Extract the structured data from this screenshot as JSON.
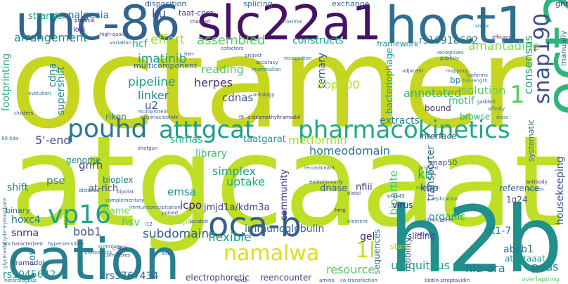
{
  "word_cloud": {
    "words": [
      {
        "text": "octamer",
        "color": "#c5d520"
      },
      {
        "text": "atgcaaat",
        "color": "#bddf26"
      },
      {
        "text": "unc-86",
        "color": "#33638d"
      },
      {
        "text": "slc22a1",
        "color": "#471164"
      },
      {
        "text": "hoct1",
        "color": "#2e6f8e"
      },
      {
        "text": "oct2",
        "color": "#2fb47c"
      },
      {
        "text": "h2b",
        "color": "#21908c"
      },
      {
        "text": "cation",
        "color": "#277f8e"
      },
      {
        "text": "oca-b",
        "color": "#355f8d"
      },
      {
        "text": "pharmacokinetics",
        "color": "#22a785"
      },
      {
        "text": "atttgcat",
        "color": "#1e9b8a"
      },
      {
        "text": "pouhd",
        "color": "#2a788e"
      },
      {
        "text": "snap190",
        "color": "#3c4f8a"
      },
      {
        "text": "namalwa",
        "color": "#d8e219"
      },
      {
        "text": "vp16",
        "color": "#1fa088"
      },
      {
        "text": "1l",
        "color": "#c2df23"
      },
      {
        "text": "1",
        "color": "#5ac864"
      },
      {
        "text": "amantadine",
        "color": "#84d44b"
      },
      {
        "text": "consensus",
        "color": "#21a685"
      },
      {
        "text": "analgesia",
        "color": "#2d718e"
      },
      {
        "text": "ku",
        "color": "#3e4989"
      },
      {
        "text": "taat-core",
        "color": "#443b84"
      },
      {
        "text": "disposition",
        "color": "#33638d"
      },
      {
        "text": "splicing",
        "color": "#2c728e"
      },
      {
        "text": "exchange",
        "color": "#31688e"
      },
      {
        "text": "strands",
        "color": "#1f9e89"
      },
      {
        "text": "gnrhr",
        "color": "#414487"
      },
      {
        "text": "arrangement",
        "color": "#25858e"
      },
      {
        "text": "effort",
        "color": "#a0da39"
      },
      {
        "text": "assembled",
        "color": "#5cc863"
      },
      {
        "text": "constructs",
        "color": "#1fa187"
      },
      {
        "text": "rs10918682",
        "color": "#2a768e"
      },
      {
        "text": "framework",
        "color": "#1f968b"
      },
      {
        "text": "hcf",
        "color": "#20a486"
      },
      {
        "text": "footprinting",
        "color": "#2ab07f"
      },
      {
        "text": "cdna",
        "color": "#2a788e"
      },
      {
        "text": "imatinib",
        "color": "#1fa188"
      },
      {
        "text": "pipeline",
        "color": "#1f9f88"
      },
      {
        "text": "reading",
        "color": "#52c569"
      },
      {
        "text": "herpes",
        "color": "#472f7d"
      },
      {
        "text": "cdnas",
        "color": "#3b528b"
      },
      {
        "text": "linker",
        "color": "#26828e"
      },
      {
        "text": "u2",
        "color": "#3a548c"
      },
      {
        "text": "ternary",
        "color": "#39568c"
      },
      {
        "text": "obp100",
        "color": "#b5de2b"
      },
      {
        "text": "annotated",
        "color": "#2fb47c"
      },
      {
        "text": "solution",
        "color": "#63cb5f"
      },
      {
        "text": "motif",
        "color": "#3fbc73"
      },
      {
        "text": "supershift",
        "color": "#24868e"
      },
      {
        "text": "bacteriophage",
        "color": "#1fa287"
      },
      {
        "text": "multicomponent",
        "color": "#31688e"
      },
      {
        "text": "5'-end",
        "color": "#3d4e8a"
      },
      {
        "text": "snrnas",
        "color": "#2ab07f"
      },
      {
        "text": "extracts",
        "color": "#287c8e"
      },
      {
        "text": "homeodomain",
        "color": "#2d718e"
      },
      {
        "text": "metformin",
        "color": "#a8db34"
      },
      {
        "text": "library",
        "color": "#40bd72"
      },
      {
        "text": "taatgarat",
        "color": "#1f9a8a"
      },
      {
        "text": "community",
        "color": "#46327e"
      },
      {
        "text": "gnrh",
        "color": "#3e4a89"
      },
      {
        "text": "pse",
        "color": "#2a788e"
      },
      {
        "text": "shift",
        "color": "#2d708e"
      },
      {
        "text": "genome",
        "color": "#25858e"
      },
      {
        "text": "bioplex",
        "color": "#2a788e"
      },
      {
        "text": "at-rich",
        "color": "#3c4f8a"
      },
      {
        "text": "simplex",
        "color": "#1f9e89"
      },
      {
        "text": "uptake",
        "color": "#25ab82"
      },
      {
        "text": "emsa",
        "color": "#1f948c"
      },
      {
        "text": "icpo",
        "color": "#482677"
      },
      {
        "text": "jmjd1a/kdm3a",
        "color": "#414487"
      },
      {
        "text": "bipartite",
        "color": "#4ac16d"
      },
      {
        "text": "transporter",
        "color": "#2e6e8e"
      },
      {
        "text": "kbp",
        "color": "#3b528b"
      },
      {
        "text": "nfiii",
        "color": "#472d7b"
      },
      {
        "text": "dnase",
        "color": "#31688e"
      },
      {
        "text": "kb",
        "color": "#27ad81"
      },
      {
        "text": "housekeeping",
        "color": "#3a548c"
      },
      {
        "text": "hoxc4",
        "color": "#2c718e"
      },
      {
        "text": "snrna",
        "color": "#482475"
      },
      {
        "text": "bob1",
        "color": "#3c508b"
      },
      {
        "text": "hsv",
        "color": "#5ec962"
      },
      {
        "text": "subdomains",
        "color": "#355f8d"
      },
      {
        "text": "immunoglobulin",
        "color": "#32648e"
      },
      {
        "text": "flexible",
        "color": "#1f998a"
      },
      {
        "text": "gel",
        "color": "#472a7a"
      },
      {
        "text": "organic",
        "color": "#1fa188"
      },
      {
        "text": "gt1-7",
        "color": "#2a788e"
      },
      {
        "text": "abcb1",
        "color": "#2c728e"
      },
      {
        "text": "1q24",
        "color": "#3e4989"
      },
      {
        "text": "snap50",
        "color": "#3d4d8a"
      },
      {
        "text": "snap45",
        "color": "#a2da37"
      },
      {
        "text": "resource",
        "color": "#58c765"
      },
      {
        "text": "ubiquitous",
        "color": "#1fa088"
      },
      {
        "text": "hla-dra",
        "color": "#2a778e"
      },
      {
        "text": "sliding",
        "color": "#414487"
      },
      {
        "text": "pous",
        "color": "#2a788e"
      },
      {
        "text": "rs1045642",
        "color": "#1f958b"
      },
      {
        "text": "rs3767434",
        "color": "#2f6b8e"
      },
      {
        "text": "electrophoretic",
        "color": "#433e85"
      },
      {
        "text": "reencounter",
        "color": "#424086"
      },
      {
        "text": "sequences",
        "color": "#2b748e"
      },
      {
        "text": "atgctaaat",
        "color": "#20928c"
      },
      {
        "text": "mobility",
        "color": "#3a538b"
      },
      {
        "text": "frame",
        "color": "#7ad151"
      },
      {
        "text": "cos",
        "color": "#2c718e"
      },
      {
        "text": "binary",
        "color": "#2b758e"
      },
      {
        "text": "tramadol",
        "color": "#3b518b"
      },
      {
        "text": "reference",
        "color": "#2f6c8e"
      },
      {
        "text": "browse",
        "color": "#29af7f"
      },
      {
        "text": "bound",
        "color": "#46337f"
      },
      {
        "text": "interface",
        "color": "#34618d"
      },
      {
        "text": "virus",
        "color": "#482979"
      },
      {
        "text": "riken",
        "color": "#2b748e"
      },
      {
        "text": "bp",
        "color": "#23898e"
      },
      {
        "text": "systematic",
        "color": "#2e6e8e"
      },
      {
        "text": "manually",
        "color": "#2b758e"
      },
      {
        "text": "start",
        "color": "#a5db36"
      },
      {
        "text": "overlapping",
        "color": "#5ec962"
      },
      {
        "text": "loci",
        "color": "#472f7d"
      },
      {
        "text": "physical",
        "color": "#482374"
      },
      {
        "text": "high-quality",
        "color": "#414487"
      },
      {
        "text": "variation",
        "color": "#355e8d"
      },
      {
        "text": "herr",
        "color": "#3e4989"
      },
      {
        "text": "cofactors",
        "color": "#3b528b"
      },
      {
        "text": "project",
        "color": "#34618d"
      },
      {
        "text": "accuracy",
        "color": "#3a548c"
      },
      {
        "text": "mammalian",
        "color": "#2d708e"
      },
      {
        "text": "charged",
        "color": "#472c7a"
      },
      {
        "text": "proximal",
        "color": "#2c738e"
      },
      {
        "text": "recognition",
        "color": "#2e6f8e"
      },
      {
        "text": "efficacy",
        "color": "#46337f"
      },
      {
        "text": "recognizes",
        "color": "#31688e"
      },
      {
        "text": "snapc",
        "color": "#2c728e"
      },
      {
        "text": "publicly",
        "color": "#38598c"
      },
      {
        "text": "adjacent",
        "color": "#3e4a89"
      },
      {
        "text": "mapping",
        "color": "#2d718e"
      },
      {
        "text": "isoforms",
        "color": "#3a538b"
      },
      {
        "text": "full-length",
        "color": "#23898e"
      },
      {
        "text": "gadd45",
        "color": "#365c8d"
      },
      {
        "text": "affinity",
        "color": "#2c728e"
      },
      {
        "text": "dnas",
        "color": "#2a768e"
      },
      {
        "text": "clusters",
        "color": "#3e4989"
      },
      {
        "text": "evolution",
        "color": "#2c728e"
      },
      {
        "text": "ontology",
        "color": "#3f4889"
      },
      {
        "text": "multiprotein",
        "color": "#2d708e"
      },
      {
        "text": "oligonucleotide",
        "color": "#3b528b"
      },
      {
        "text": "f9",
        "color": "#443983"
      },
      {
        "text": "o-desmethyltramadol",
        "color": "#472e7c"
      },
      {
        "text": "80-kda",
        "color": "#2f6b8e"
      },
      {
        "text": "glyceraldehyde-3-phosphate",
        "color": "#2e6e8e"
      },
      {
        "text": "shotgun",
        "color": "#3a538b"
      },
      {
        "text": "recombinant",
        "color": "#3b528b"
      },
      {
        "text": "evolutionarily",
        "color": "#3f4788"
      },
      {
        "text": "distance",
        "color": "#34608d"
      },
      {
        "text": "bipolar",
        "color": "#3e4a89"
      },
      {
        "text": "complementary",
        "color": "#31678e"
      },
      {
        "text": "immunoprecipitation",
        "color": "#31678e"
      },
      {
        "text": "distal",
        "color": "#3b518b"
      },
      {
        "text": "collection",
        "color": "#2d718e"
      },
      {
        "text": "bridged",
        "color": "#3e4989"
      },
      {
        "text": "antibody",
        "color": "#472a7a"
      },
      {
        "text": "access",
        "color": "#2e6d8e"
      },
      {
        "text": "replication",
        "color": "#2d718e"
      },
      {
        "text": "uncharacterized",
        "color": "#3b528b"
      },
      {
        "text": "hypersensitive",
        "color": "#2e6f8e"
      },
      {
        "text": "poised",
        "color": "#38588c"
      },
      {
        "text": "located",
        "color": "#3b528b"
      },
      {
        "text": "hmg",
        "color": "#472a7a"
      },
      {
        "text": "element",
        "color": "#2e6f8e"
      },
      {
        "text": "dissociation",
        "color": "#3a538b"
      },
      {
        "text": "antigen",
        "color": "#3f4788"
      },
      {
        "text": "proteomics",
        "color": "#2c718e"
      },
      {
        "text": "complexes",
        "color": "#3a548c"
      },
      {
        "text": "sites",
        "color": "#34618d"
      },
      {
        "text": "c.480c",
        "color": "#472d7b"
      },
      {
        "text": "heterologous",
        "color": "#2e6d8e"
      },
      {
        "text": "nod2",
        "color": "#3b518b"
      },
      {
        "text": "amino",
        "color": "#3e4c8a"
      },
      {
        "text": "co-transfection",
        "color": "#31688e"
      },
      {
        "text": "biotin-streptavidin",
        "color": "#3f4788"
      },
      {
        "text": "summary",
        "color": "#2d708e"
      },
      {
        "text": "snap43",
        "color": "#3e4989"
      },
      {
        "text": "i12",
        "color": "#3b528b"
      }
    ]
  }
}
